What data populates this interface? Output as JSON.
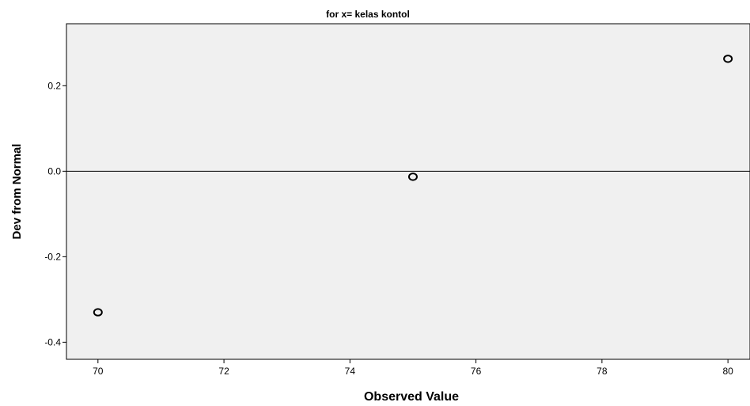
{
  "chart_data": {
    "type": "scatter",
    "title": "for x= kelas kontol",
    "xlabel": "Observed Value",
    "ylabel": "Dev from Normal",
    "xlim": [
      69.5,
      80.35
    ],
    "ylim": [
      -0.44,
      0.345
    ],
    "x_ticks": [
      70,
      72,
      74,
      76,
      78,
      80
    ],
    "x_tick_labels": [
      "70",
      "72",
      "74",
      "76",
      "78",
      "80"
    ],
    "y_ticks": [
      0.2,
      0.0,
      -0.2,
      -0.4
    ],
    "y_tick_labels": [
      "0.2",
      "0.0",
      "-0.2",
      "-0.4"
    ],
    "reference_line_y": 0.0,
    "points": [
      {
        "x": 70,
        "y": -0.33
      },
      {
        "x": 75,
        "y": -0.013
      },
      {
        "x": 80,
        "y": 0.263
      }
    ],
    "grid": false,
    "plot_background": "#f0f0f0",
    "marker_color": "#000000"
  }
}
